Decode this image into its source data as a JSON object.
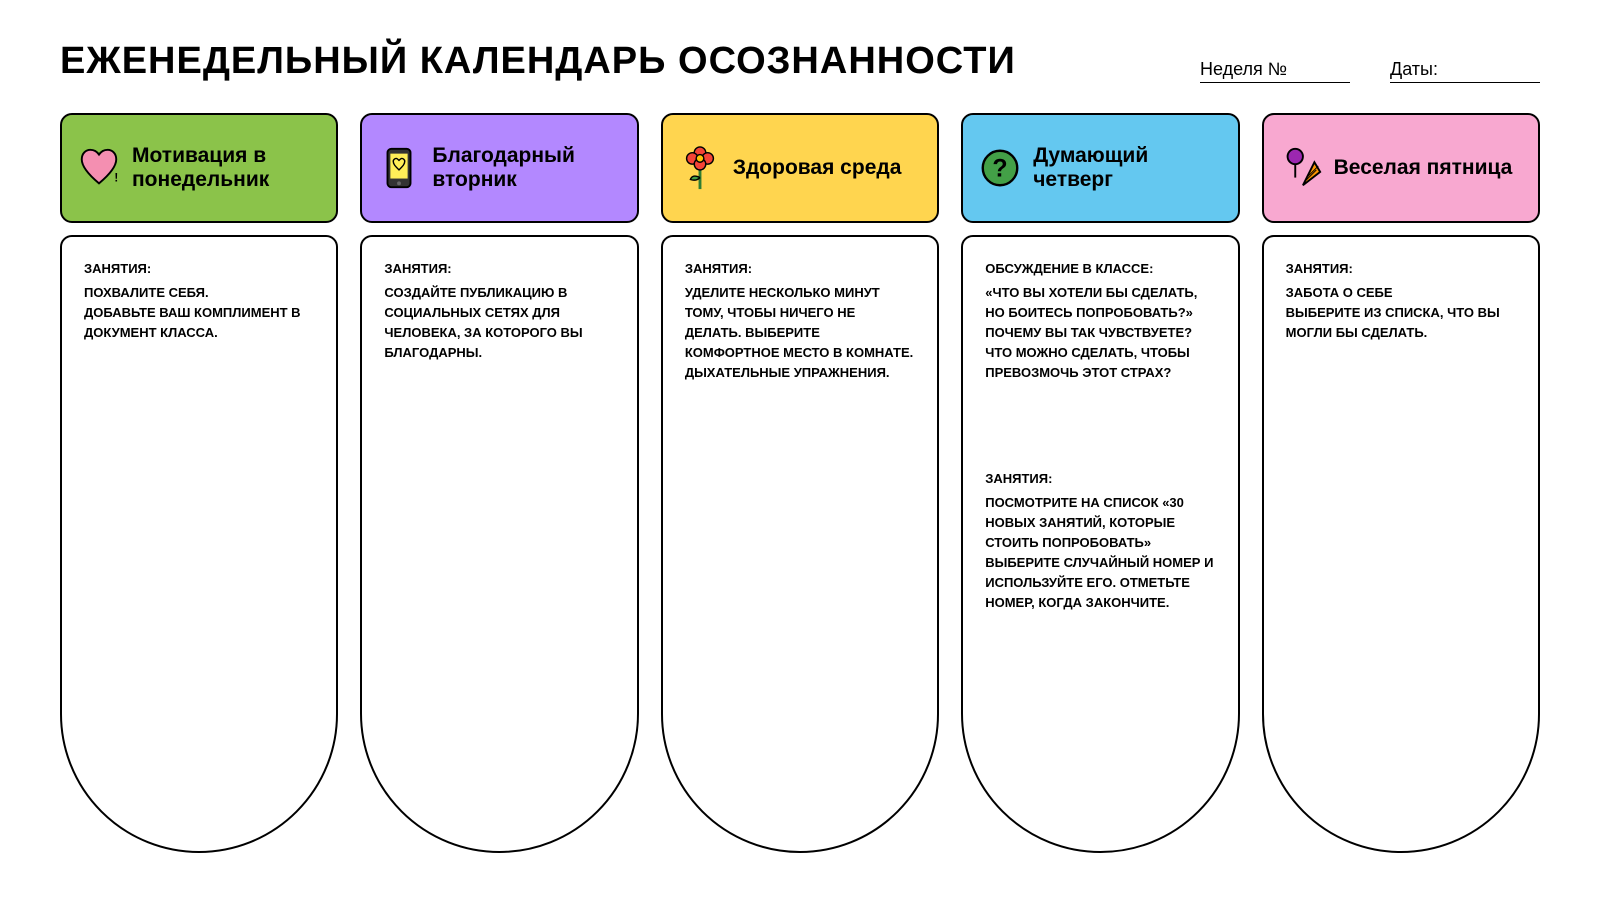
{
  "title": "ЕЖЕНЕДЕЛЬНЫЙ КАЛЕНДАРЬ ОСОЗНАННОСТИ",
  "week_label": "Неделя №",
  "dates_label": "Даты:",
  "colors": {
    "monday": "#8bc34a",
    "tuesday": "#b388ff",
    "wednesday": "#ffd54f",
    "thursday": "#64c8f0",
    "friday": "#f8a8d0",
    "icon_pink": "#f48fb1",
    "icon_yellow": "#ffee58",
    "icon_red": "#f44336",
    "icon_green": "#43a047",
    "icon_purple": "#9c27b0",
    "icon_orange": "#ff9800"
  },
  "days": [
    {
      "title": "Мотивация в понедельник",
      "sections": [
        {
          "label": "ЗАНЯТИЯ:",
          "text": "ПОХВАЛИТЕ СЕБЯ.\nДОБАВЬТЕ ВАШ КОМПЛИМЕНТ В ДОКУМЕНТ КЛАССА."
        }
      ]
    },
    {
      "title": "Благодарный вторник",
      "sections": [
        {
          "label": "ЗАНЯТИЯ:",
          "text": "СОЗДАЙТЕ ПУБЛИКАЦИЮ В СОЦИАЛЬНЫХ СЕТЯХ ДЛЯ ЧЕЛОВЕКА, ЗА КОТОРОГО ВЫ БЛАГОДАРНЫ."
        }
      ]
    },
    {
      "title": "Здоровая среда",
      "sections": [
        {
          "label": "ЗАНЯТИЯ:",
          "text": "УДЕЛИТЕ НЕСКОЛЬКО МИНУТ ТОМУ, ЧТОБЫ НИЧЕГО НЕ ДЕЛАТЬ. ВЫБЕРИТЕ КОМФОРТНОЕ МЕСТО В КОМНАТЕ.\nДЫХАТЕЛЬНЫЕ УПРАЖНЕНИЯ."
        }
      ]
    },
    {
      "title": "Думающий четверг",
      "sections": [
        {
          "label": "ОБСУЖДЕНИЕ В КЛАССЕ:",
          "text": "«ЧТО ВЫ ХОТЕЛИ БЫ СДЕЛАТЬ, НО БОИТЕСЬ ПОПРОБОВАТЬ?» ПОЧЕМУ ВЫ ТАК ЧУВСТВУЕТЕ? ЧТО МОЖНО СДЕЛАТЬ, ЧТОБЫ ПРЕВОЗМОЧЬ ЭТОТ СТРАХ?"
        },
        {
          "label": "ЗАНЯТИЯ:",
          "text": "ПОСМОТРИТЕ НА СПИСОК «30 НОВЫХ ЗАНЯТИЙ, КОТОРЫЕ СТОИТЬ ПОПРОБОВАТЬ» ВЫБЕРИТЕ СЛУЧАЙНЫЙ НОМЕР И ИСПОЛЬЗУЙТЕ ЕГО. ОТМЕТЬТЕ НОМЕР, КОГДА ЗАКОНЧИТЕ."
        }
      ]
    },
    {
      "title": "Веселая пятница",
      "sections": [
        {
          "label": "ЗАНЯТИЯ:",
          "text": "ЗАБОТА О СЕБЕ\nВЫБЕРИТЕ ИЗ СПИСКА, ЧТО ВЫ МОГЛИ БЫ СДЕЛАТЬ."
        }
      ]
    }
  ]
}
